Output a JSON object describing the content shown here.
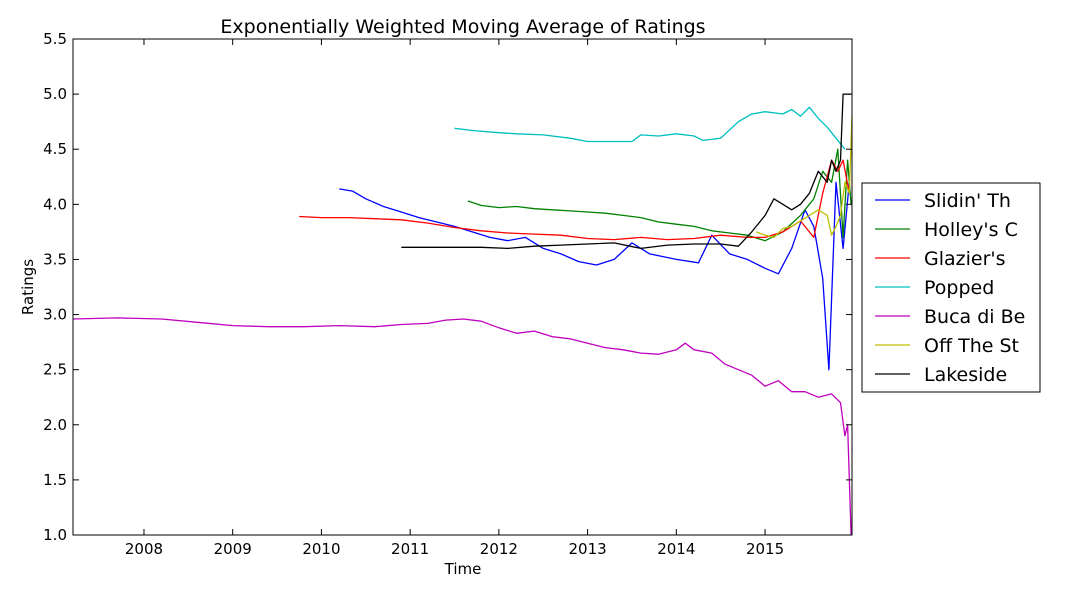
{
  "chart_data": {
    "type": "line",
    "title": "Exponentially Weighted Moving Average of Ratings",
    "xlabel": "Time",
    "ylabel": "Ratings",
    "xlim": [
      2007.2,
      2015.98
    ],
    "ylim": [
      1.0,
      5.5
    ],
    "x_ticks": [
      "2008",
      "2009",
      "2010",
      "2011",
      "2012",
      "2013",
      "2014",
      "2015"
    ],
    "x_tick_values": [
      2008,
      2009,
      2010,
      2011,
      2012,
      2013,
      2014,
      2015
    ],
    "y_ticks": [
      "1.0",
      "1.5",
      "2.0",
      "2.5",
      "3.0",
      "3.5",
      "4.0",
      "4.5",
      "5.0",
      "5.5"
    ],
    "y_tick_values": [
      1.0,
      1.5,
      2.0,
      2.5,
      3.0,
      3.5,
      4.0,
      4.5,
      5.0,
      5.5
    ],
    "grid": false,
    "legend_placement": "outside-right",
    "series": [
      {
        "name": "Slidin' Th",
        "color": "#0000ff",
        "x": [
          2010.2,
          2010.35,
          2010.5,
          2010.7,
          2010.9,
          2011.1,
          2011.3,
          2011.5,
          2011.7,
          2011.9,
          2012.1,
          2012.3,
          2012.5,
          2012.7,
          2012.9,
          2013.1,
          2013.3,
          2013.5,
          2013.7,
          2014.0,
          2014.25,
          2014.4,
          2014.6,
          2014.8,
          2015.0,
          2015.15,
          2015.3,
          2015.45,
          2015.55,
          2015.65,
          2015.72,
          2015.8,
          2015.88,
          2015.95
        ],
        "y": [
          4.14,
          4.12,
          4.05,
          3.98,
          3.93,
          3.88,
          3.84,
          3.8,
          3.75,
          3.7,
          3.67,
          3.7,
          3.6,
          3.55,
          3.48,
          3.45,
          3.5,
          3.65,
          3.55,
          3.5,
          3.47,
          3.72,
          3.55,
          3.5,
          3.42,
          3.37,
          3.6,
          3.95,
          3.8,
          3.33,
          2.5,
          4.2,
          3.6,
          4.2
        ]
      },
      {
        "name": "Holley's C",
        "color": "#008000",
        "x": [
          2011.65,
          2011.8,
          2012.0,
          2012.2,
          2012.4,
          2012.6,
          2012.8,
          2013.0,
          2013.2,
          2013.4,
          2013.6,
          2013.8,
          2014.0,
          2014.2,
          2014.4,
          2014.6,
          2014.8,
          2015.0,
          2015.2,
          2015.4,
          2015.55,
          2015.65,
          2015.75,
          2015.82,
          2015.88,
          2015.93,
          2015.97
        ],
        "y": [
          4.03,
          3.99,
          3.97,
          3.98,
          3.96,
          3.95,
          3.94,
          3.93,
          3.92,
          3.9,
          3.88,
          3.84,
          3.82,
          3.8,
          3.76,
          3.74,
          3.72,
          3.67,
          3.75,
          3.9,
          4.05,
          4.3,
          4.2,
          4.5,
          3.7,
          4.4,
          4.0
        ]
      },
      {
        "name": "Glazier's",
        "color": "#ff0000",
        "x": [
          2009.75,
          2010.0,
          2010.3,
          2010.6,
          2010.9,
          2011.2,
          2011.5,
          2011.8,
          2012.1,
          2012.4,
          2012.7,
          2013.0,
          2013.3,
          2013.6,
          2013.9,
          2014.2,
          2014.5,
          2014.8,
          2015.0,
          2015.2,
          2015.4,
          2015.55,
          2015.65,
          2015.75,
          2015.82,
          2015.88,
          2015.95
        ],
        "y": [
          3.89,
          3.88,
          3.88,
          3.87,
          3.86,
          3.83,
          3.79,
          3.76,
          3.74,
          3.73,
          3.72,
          3.69,
          3.68,
          3.7,
          3.68,
          3.69,
          3.72,
          3.7,
          3.7,
          3.75,
          3.85,
          3.7,
          4.1,
          4.4,
          4.3,
          4.4,
          4.1
        ]
      },
      {
        "name": "Popped",
        "color": "#00bfbf",
        "x": [
          2011.5,
          2011.7,
          2012.0,
          2012.2,
          2012.5,
          2012.8,
          2013.0,
          2013.3,
          2013.5,
          2013.6,
          2013.8,
          2014.0,
          2014.2,
          2014.3,
          2014.5,
          2014.7,
          2014.85,
          2015.0,
          2015.2,
          2015.3,
          2015.4,
          2015.5,
          2015.6,
          2015.7,
          2015.8,
          2015.9
        ],
        "y": [
          4.69,
          4.67,
          4.65,
          4.64,
          4.63,
          4.6,
          4.57,
          4.57,
          4.57,
          4.63,
          4.62,
          4.64,
          4.62,
          4.58,
          4.6,
          4.75,
          4.82,
          4.84,
          4.82,
          4.86,
          4.8,
          4.88,
          4.78,
          4.7,
          4.6,
          4.5
        ]
      },
      {
        "name": "Buca di Be",
        "color": "#bf00bf",
        "x": [
          2007.2,
          2007.7,
          2008.2,
          2008.6,
          2009.0,
          2009.4,
          2009.8,
          2010.2,
          2010.6,
          2010.9,
          2011.2,
          2011.4,
          2011.6,
          2011.8,
          2012.0,
          2012.2,
          2012.4,
          2012.6,
          2012.8,
          2013.0,
          2013.2,
          2013.4,
          2013.6,
          2013.8,
          2014.0,
          2014.1,
          2014.2,
          2014.4,
          2014.55,
          2014.7,
          2014.85,
          2015.0,
          2015.15,
          2015.3,
          2015.45,
          2015.6,
          2015.75,
          2015.85,
          2015.9,
          2015.93,
          2015.97
        ],
        "y": [
          2.96,
          2.97,
          2.96,
          2.93,
          2.9,
          2.89,
          2.89,
          2.9,
          2.89,
          2.91,
          2.92,
          2.95,
          2.96,
          2.94,
          2.88,
          2.83,
          2.85,
          2.8,
          2.78,
          2.74,
          2.7,
          2.68,
          2.65,
          2.64,
          2.68,
          2.74,
          2.68,
          2.65,
          2.55,
          2.5,
          2.45,
          2.35,
          2.4,
          2.3,
          2.3,
          2.25,
          2.28,
          2.2,
          1.9,
          2.0,
          1.0
        ]
      },
      {
        "name": "Off The St",
        "color": "#bfbf00",
        "x": [
          2014.9,
          2015.0,
          2015.1,
          2015.2,
          2015.3,
          2015.4,
          2015.5,
          2015.6,
          2015.7,
          2015.75,
          2015.8,
          2015.85,
          2015.9,
          2015.95,
          2015.98
        ],
        "y": [
          3.75,
          3.72,
          3.7,
          3.78,
          3.8,
          3.85,
          3.9,
          3.95,
          3.9,
          3.72,
          3.8,
          3.9,
          4.2,
          4.1,
          4.8
        ]
      },
      {
        "name": "Lakeside",
        "color": "#000000",
        "x": [
          2010.9,
          2011.2,
          2011.5,
          2011.8,
          2012.1,
          2012.4,
          2012.7,
          2013.0,
          2013.3,
          2013.6,
          2013.9,
          2014.2,
          2014.5,
          2014.7,
          2014.85,
          2015.0,
          2015.1,
          2015.2,
          2015.3,
          2015.4,
          2015.5,
          2015.6,
          2015.7,
          2015.75,
          2015.8,
          2015.85,
          2015.88,
          2015.92,
          2015.97
        ],
        "y": [
          3.61,
          3.61,
          3.61,
          3.61,
          3.6,
          3.62,
          3.63,
          3.64,
          3.65,
          3.6,
          3.63,
          3.64,
          3.64,
          3.62,
          3.75,
          3.9,
          4.05,
          4.0,
          3.95,
          4.0,
          4.1,
          4.3,
          4.2,
          4.4,
          4.3,
          4.4,
          5.0,
          5.0,
          5.0
        ]
      }
    ]
  }
}
